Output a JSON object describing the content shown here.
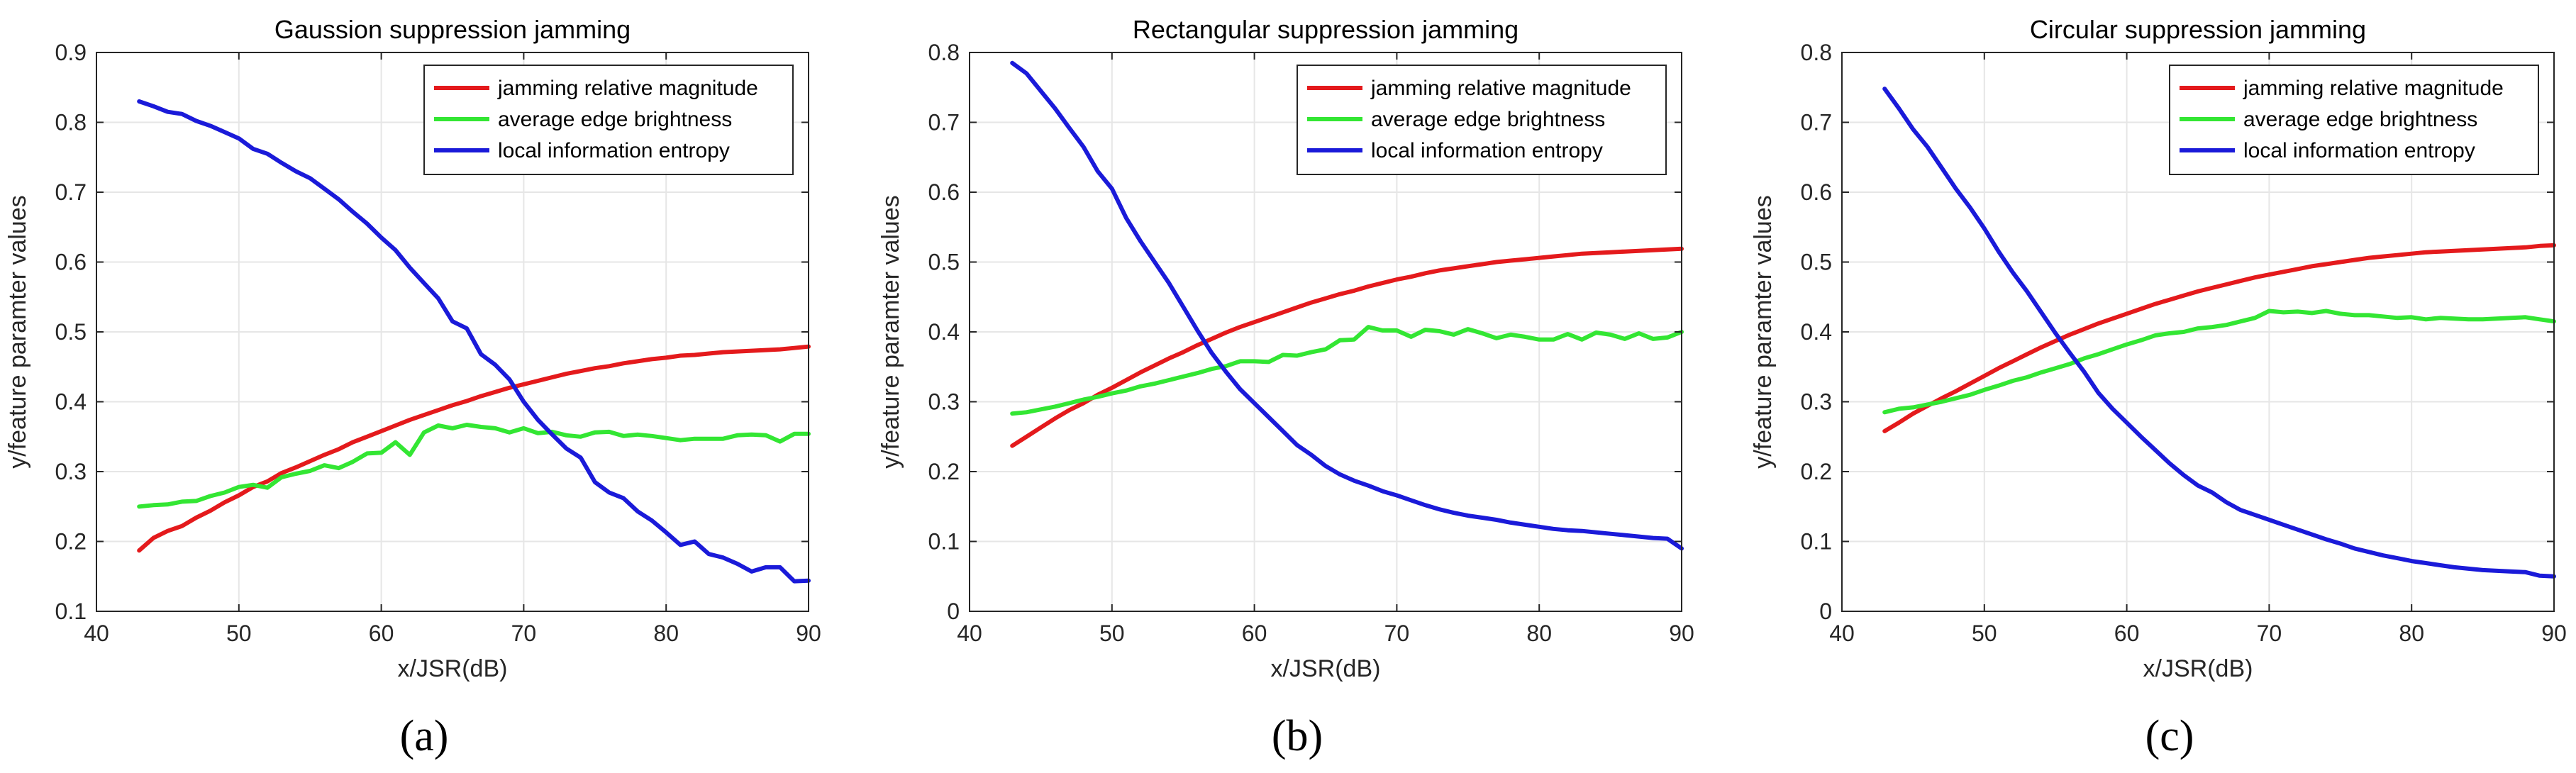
{
  "chart_data": [
    {
      "type": "line",
      "panel_label": "(a)",
      "title": "Gaussion suppression jamming",
      "xlabel": "x/JSR(dB)",
      "ylabel": "y/feature paramter values",
      "xlim": [
        40,
        90
      ],
      "ylim": [
        0.1,
        0.9
      ],
      "xticks": [
        40,
        50,
        60,
        70,
        80,
        90
      ],
      "yticks": [
        0.1,
        0.2,
        0.3,
        0.4,
        0.5,
        0.6,
        0.7,
        0.8,
        0.9
      ],
      "grid": true,
      "legend_position": "top-right",
      "x": [
        43,
        44,
        45,
        46,
        47,
        48,
        49,
        50,
        51,
        52,
        53,
        54,
        55,
        56,
        57,
        58,
        59,
        60,
        61,
        62,
        63,
        64,
        65,
        66,
        67,
        68,
        69,
        70,
        71,
        72,
        73,
        74,
        75,
        76,
        77,
        78,
        79,
        80,
        81,
        82,
        83,
        84,
        85,
        86,
        87,
        88,
        89,
        90
      ],
      "series": [
        {
          "name": "jamming relative magnitude",
          "color": "#e41a1c",
          "values": [
            0.187,
            0.205,
            0.215,
            0.222,
            0.234,
            0.244,
            0.256,
            0.266,
            0.278,
            0.286,
            0.298,
            0.306,
            0.315,
            0.324,
            0.332,
            0.342,
            0.35,
            0.358,
            0.366,
            0.374,
            0.381,
            0.388,
            0.395,
            0.401,
            0.408,
            0.414,
            0.42,
            0.425,
            0.43,
            0.435,
            0.44,
            0.444,
            0.448,
            0.451,
            0.455,
            0.458,
            0.461,
            0.463,
            0.466,
            0.467,
            0.469,
            0.471,
            0.472,
            0.473,
            0.474,
            0.475,
            0.477,
            0.479
          ]
        },
        {
          "name": "average edge brightness",
          "color": "#33e633",
          "values": [
            0.25,
            0.252,
            0.253,
            0.257,
            0.258,
            0.265,
            0.27,
            0.278,
            0.281,
            0.277,
            0.292,
            0.297,
            0.301,
            0.309,
            0.305,
            0.314,
            0.326,
            0.327,
            0.342,
            0.324,
            0.356,
            0.366,
            0.362,
            0.367,
            0.364,
            0.362,
            0.356,
            0.362,
            0.355,
            0.357,
            0.352,
            0.35,
            0.356,
            0.357,
            0.351,
            0.353,
            0.351,
            0.348,
            0.345,
            0.347,
            0.347,
            0.347,
            0.352,
            0.353,
            0.352,
            0.343,
            0.354,
            0.354
          ]
        },
        {
          "name": "local information entropy",
          "color": "#1a1ad9",
          "values": [
            0.83,
            0.823,
            0.815,
            0.812,
            0.802,
            0.795,
            0.786,
            0.777,
            0.762,
            0.755,
            0.742,
            0.73,
            0.72,
            0.705,
            0.69,
            0.672,
            0.655,
            0.635,
            0.617,
            0.592,
            0.57,
            0.548,
            0.515,
            0.505,
            0.468,
            0.453,
            0.432,
            0.4,
            0.374,
            0.353,
            0.333,
            0.32,
            0.285,
            0.27,
            0.262,
            0.243,
            0.23,
            0.213,
            0.195,
            0.2,
            0.182,
            0.177,
            0.168,
            0.157,
            0.163,
            0.163,
            0.143,
            0.144
          ]
        }
      ]
    },
    {
      "type": "line",
      "panel_label": "(b)",
      "title": "Rectangular suppression jamming",
      "xlabel": "x/JSR(dB)",
      "ylabel": "y/feature paramter values",
      "xlim": [
        40,
        90
      ],
      "ylim": [
        0,
        0.8
      ],
      "xticks": [
        40,
        50,
        60,
        70,
        80,
        90
      ],
      "yticks": [
        0,
        0.1,
        0.2,
        0.3,
        0.4,
        0.5,
        0.6,
        0.7,
        0.8
      ],
      "grid": true,
      "legend_position": "top-right",
      "x": [
        43,
        44,
        45,
        46,
        47,
        48,
        49,
        50,
        51,
        52,
        53,
        54,
        55,
        56,
        57,
        58,
        59,
        60,
        61,
        62,
        63,
        64,
        65,
        66,
        67,
        68,
        69,
        70,
        71,
        72,
        73,
        74,
        75,
        76,
        77,
        78,
        79,
        80,
        81,
        82,
        83,
        84,
        85,
        86,
        87,
        88,
        89,
        90
      ],
      "series": [
        {
          "name": "jamming relative magnitude",
          "color": "#e41a1c",
          "values": [
            0.237,
            0.25,
            0.263,
            0.276,
            0.288,
            0.298,
            0.31,
            0.32,
            0.331,
            0.342,
            0.352,
            0.362,
            0.371,
            0.381,
            0.39,
            0.399,
            0.407,
            0.414,
            0.421,
            0.428,
            0.435,
            0.442,
            0.448,
            0.454,
            0.459,
            0.465,
            0.47,
            0.475,
            0.479,
            0.484,
            0.488,
            0.491,
            0.494,
            0.497,
            0.5,
            0.502,
            0.504,
            0.506,
            0.508,
            0.51,
            0.512,
            0.513,
            0.514,
            0.515,
            0.516,
            0.517,
            0.518,
            0.519
          ]
        },
        {
          "name": "average edge brightness",
          "color": "#33e633",
          "values": [
            0.283,
            0.285,
            0.289,
            0.293,
            0.298,
            0.303,
            0.307,
            0.312,
            0.316,
            0.322,
            0.326,
            0.331,
            0.336,
            0.341,
            0.347,
            0.351,
            0.358,
            0.358,
            0.357,
            0.367,
            0.366,
            0.371,
            0.375,
            0.388,
            0.389,
            0.407,
            0.402,
            0.402,
            0.393,
            0.403,
            0.401,
            0.396,
            0.404,
            0.398,
            0.391,
            0.396,
            0.393,
            0.389,
            0.389,
            0.397,
            0.389,
            0.399,
            0.396,
            0.39,
            0.398,
            0.39,
            0.392,
            0.4
          ]
        },
        {
          "name": "local information entropy",
          "color": "#1a1ad9",
          "values": [
            0.785,
            0.77,
            0.745,
            0.72,
            0.692,
            0.665,
            0.63,
            0.605,
            0.563,
            0.53,
            0.5,
            0.47,
            0.436,
            0.402,
            0.37,
            0.343,
            0.318,
            0.298,
            0.278,
            0.258,
            0.238,
            0.224,
            0.208,
            0.196,
            0.187,
            0.18,
            0.172,
            0.166,
            0.159,
            0.152,
            0.146,
            0.141,
            0.137,
            0.134,
            0.131,
            0.127,
            0.124,
            0.121,
            0.118,
            0.116,
            0.115,
            0.113,
            0.111,
            0.109,
            0.107,
            0.105,
            0.104,
            0.09
          ]
        }
      ]
    },
    {
      "type": "line",
      "panel_label": "(c)",
      "title": "Circular suppression jamming",
      "xlabel": "x/JSR(dB)",
      "ylabel": "y/feature paramter values",
      "xlim": [
        40,
        90
      ],
      "ylim": [
        0,
        0.8
      ],
      "xticks": [
        40,
        50,
        60,
        70,
        80,
        90
      ],
      "yticks": [
        0,
        0.1,
        0.2,
        0.3,
        0.4,
        0.5,
        0.6,
        0.7,
        0.8
      ],
      "grid": true,
      "legend_position": "top-right",
      "x": [
        43,
        44,
        45,
        46,
        47,
        48,
        49,
        50,
        51,
        52,
        53,
        54,
        55,
        56,
        57,
        58,
        59,
        60,
        61,
        62,
        63,
        64,
        65,
        66,
        67,
        68,
        69,
        70,
        71,
        72,
        73,
        74,
        75,
        76,
        77,
        78,
        79,
        80,
        81,
        82,
        83,
        84,
        85,
        86,
        87,
        88,
        89,
        90
      ],
      "series": [
        {
          "name": "jamming relative magnitude",
          "color": "#e41a1c",
          "values": [
            0.258,
            0.27,
            0.283,
            0.294,
            0.305,
            0.315,
            0.326,
            0.337,
            0.348,
            0.358,
            0.368,
            0.378,
            0.387,
            0.396,
            0.404,
            0.412,
            0.419,
            0.426,
            0.433,
            0.44,
            0.446,
            0.452,
            0.458,
            0.463,
            0.468,
            0.473,
            0.478,
            0.482,
            0.486,
            0.49,
            0.494,
            0.497,
            0.5,
            0.503,
            0.506,
            0.508,
            0.51,
            0.512,
            0.514,
            0.515,
            0.516,
            0.517,
            0.518,
            0.519,
            0.52,
            0.521,
            0.523,
            0.524
          ]
        },
        {
          "name": "average edge brightness",
          "color": "#33e633",
          "values": [
            0.285,
            0.29,
            0.292,
            0.296,
            0.3,
            0.305,
            0.31,
            0.317,
            0.323,
            0.33,
            0.335,
            0.342,
            0.348,
            0.354,
            0.362,
            0.368,
            0.375,
            0.382,
            0.388,
            0.395,
            0.398,
            0.4,
            0.405,
            0.407,
            0.41,
            0.415,
            0.42,
            0.43,
            0.428,
            0.429,
            0.427,
            0.43,
            0.426,
            0.424,
            0.424,
            0.422,
            0.42,
            0.421,
            0.418,
            0.42,
            0.419,
            0.418,
            0.418,
            0.419,
            0.42,
            0.421,
            0.418,
            0.415
          ]
        },
        {
          "name": "local information entropy",
          "color": "#1a1ad9",
          "values": [
            0.748,
            0.72,
            0.69,
            0.665,
            0.635,
            0.605,
            0.578,
            0.548,
            0.515,
            0.485,
            0.458,
            0.428,
            0.398,
            0.37,
            0.343,
            0.313,
            0.29,
            0.27,
            0.25,
            0.231,
            0.212,
            0.195,
            0.18,
            0.17,
            0.156,
            0.145,
            0.138,
            0.131,
            0.124,
            0.117,
            0.11,
            0.103,
            0.097,
            0.09,
            0.085,
            0.08,
            0.076,
            0.072,
            0.069,
            0.066,
            0.063,
            0.061,
            0.059,
            0.058,
            0.057,
            0.056,
            0.051,
            0.05
          ]
        }
      ]
    }
  ]
}
